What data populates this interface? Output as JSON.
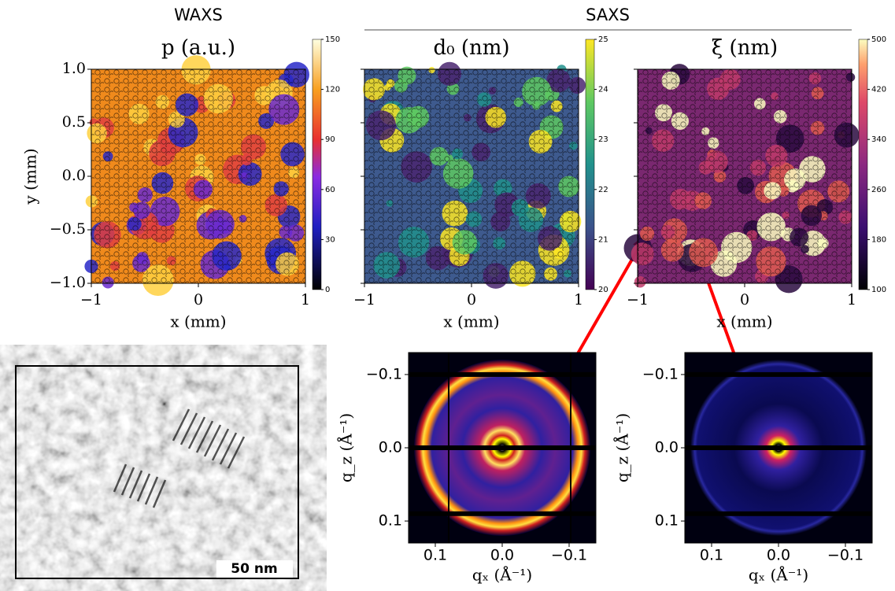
{
  "headers": {
    "waxs": "WAXS",
    "saxs": "SAXS"
  },
  "maps": [
    {
      "title": "p (a.u.)",
      "xlabel": "x (mm)",
      "ylabel": "y (mm)",
      "xlim": [
        -1,
        1
      ],
      "ylim": [
        -1,
        1
      ],
      "xticks": [
        {
          "value": -1,
          "label": "−1"
        },
        0,
        1
      ],
      "yticks": [
        {
          "value": 1,
          "label": "1.0"
        },
        0.5,
        {
          "value": 0,
          "label": "0.0"
        },
        {
          "value": -0.5,
          "label": "−0.5"
        },
        {
          "value": -1,
          "label": "−1.0"
        }
      ],
      "colorbar": {
        "lim": [
          0,
          150
        ],
        "ticks": [
          0,
          30,
          60,
          90,
          120,
          150
        ]
      }
    },
    {
      "title": "d₀ (nm)",
      "xlabel": "x (mm)",
      "xlim": [
        -1,
        1
      ],
      "ylim": [
        -1,
        1
      ],
      "xticks": [
        {
          "value": -1,
          "label": "−1"
        },
        0,
        1
      ],
      "yticks": [
        1,
        0.5,
        0,
        -0.5,
        -1
      ],
      "colorbar": {
        "lim": [
          20,
          25
        ],
        "ticks": [
          20,
          21,
          22,
          23,
          24,
          25
        ]
      }
    },
    {
      "title": "ξ (nm)",
      "xlabel": "x (mm)",
      "xlim": [
        -1,
        1
      ],
      "ylim": [
        -1,
        1
      ],
      "xticks": [
        {
          "value": -1,
          "label": "−1"
        },
        0,
        1
      ],
      "yticks": [
        1,
        0.5,
        0,
        -0.5,
        -1
      ],
      "colorbar": {
        "lim": [
          100,
          500
        ],
        "ticks": [
          100,
          180,
          260,
          340,
          420,
          500
        ]
      }
    }
  ],
  "micrograph": {
    "scale_bar": "50 nm"
  },
  "patterns": [
    {
      "xlabel": "qₓ (Å⁻¹)",
      "ylabel": "q_z (Å⁻¹)",
      "xlim": [
        0.14,
        -0.14
      ],
      "ylim": [
        -0.13,
        0.13
      ],
      "xticks": [
        0.1,
        {
          "value": 0,
          "label": "0.0"
        },
        {
          "value": -0.1,
          "label": "−0.1"
        }
      ],
      "yticks": [
        {
          "value": -0.1,
          "label": "−0.1"
        },
        {
          "value": 0,
          "label": "0.0"
        },
        0.1
      ]
    },
    {
      "xlabel": "qₓ (Å⁻¹)",
      "ylabel": "q_z (Å⁻¹)",
      "xlim": [
        0.14,
        -0.14
      ],
      "ylim": [
        -0.13,
        0.13
      ],
      "xticks": [
        0.1,
        {
          "value": 0,
          "label": "0.0"
        },
        {
          "value": -0.1,
          "label": "−0.1"
        }
      ],
      "yticks": [
        {
          "value": -0.1,
          "label": "−0.1"
        },
        {
          "value": 0,
          "label": "0.0"
        },
        0.1
      ]
    }
  ]
}
